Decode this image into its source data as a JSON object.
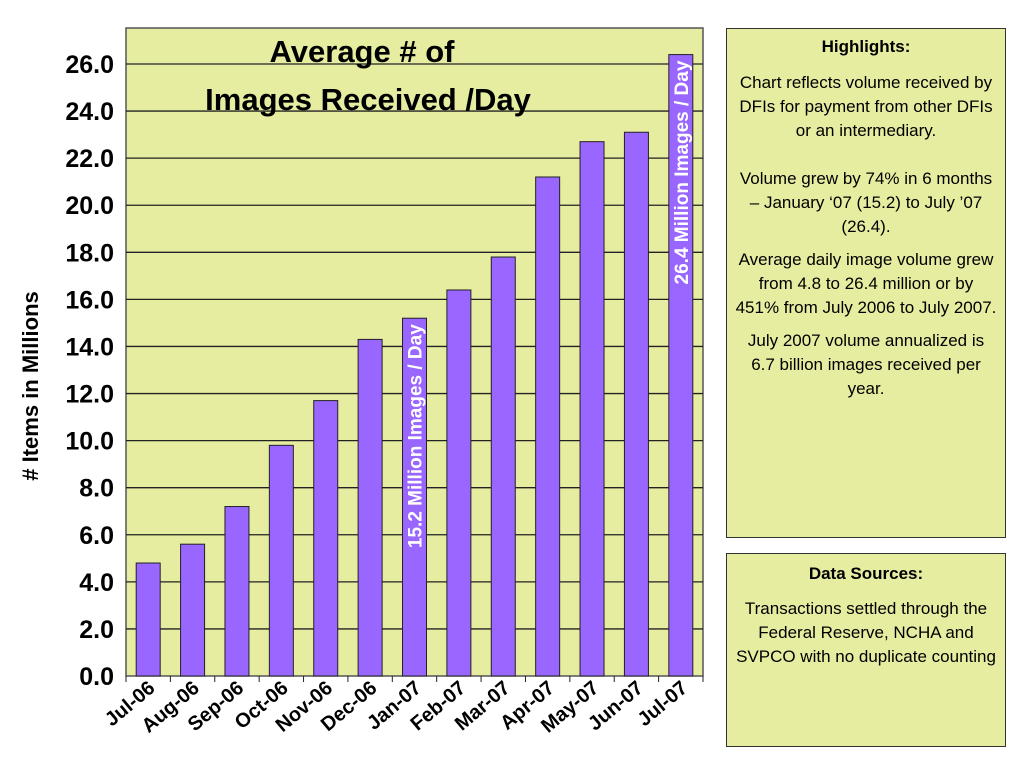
{
  "chart_data": {
    "type": "bar",
    "title_line1": "Average # of",
    "title_line2": "Images Received /Day",
    "ylabel": "# Items in Millions",
    "xlabel": "",
    "categories": [
      "Jul-06",
      "Aug-06",
      "Sep-06",
      "Oct-06",
      "Nov-06",
      "Dec-06",
      "Jan-07",
      "Feb-07",
      "Mar-07",
      "Apr-07",
      "May-07",
      "Jun-07",
      "Jul-07"
    ],
    "values": [
      4.8,
      5.6,
      7.2,
      9.8,
      11.7,
      14.3,
      15.2,
      16.4,
      17.8,
      21.2,
      22.7,
      23.1,
      26.4
    ],
    "ylim": [
      0,
      28
    ],
    "yticks": [
      "0.0",
      "2.0",
      "4.0",
      "6.0",
      "8.0",
      "10.0",
      "12.0",
      "14.0",
      "16.0",
      "18.0",
      "20.0",
      "22.0",
      "24.0",
      "26.0"
    ],
    "grid": true,
    "bar_annotations": [
      {
        "category_index": 6,
        "text": "15.2 Million Images / Day"
      },
      {
        "category_index": 12,
        "text": "26.4 Million Images / Day"
      }
    ],
    "colors": {
      "bar": "#9966ff",
      "plot_bg": "#e6eca0",
      "annotation_text": "#ffffff"
    }
  },
  "highlights": {
    "heading": "Highlights:",
    "paragraphs": [
      "Chart reflects volume received by DFIs for payment from other DFIs or an intermediary.",
      "Volume grew by 74% in 6 months – January ‘07 (15.2) to July ’07 (26.4).",
      "Average daily image volume grew from 4.8 to 26.4 million or by 451% from July 2006 to July 2007.",
      "July 2007 volume annualized is 6.7 billion images received per year."
    ]
  },
  "data_sources": {
    "heading": "Data Sources:",
    "text": "Transactions settled through the Federal Reserve, NCHA and SVPCO with no duplicate counting"
  }
}
